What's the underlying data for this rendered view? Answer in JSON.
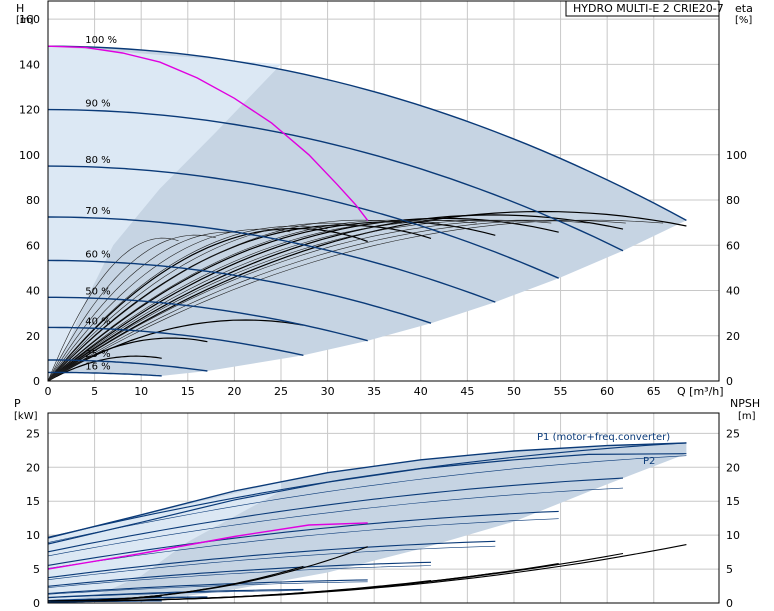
{
  "chart_data": [
    {
      "type": "line",
      "title": "HYDRO MULTI-E 2 CRIE20-7",
      "y_left_label": "H",
      "y_left_unit": "[m]",
      "y_right_label": "eta",
      "y_right_unit": "[%]",
      "x_label": "Q [m³/h]",
      "xlim": [
        0,
        72
      ],
      "ylim": [
        0,
        168
      ],
      "x_ticks": [
        0,
        5,
        10,
        15,
        20,
        25,
        30,
        35,
        40,
        45,
        50,
        55,
        60,
        65
      ],
      "y_ticks": [
        0,
        20,
        40,
        60,
        80,
        100,
        120,
        140,
        160
      ],
      "eta_ticks": [
        0,
        20,
        40,
        60,
        80,
        100
      ],
      "grid": true,
      "colors": {
        "curve": "#0a3a78",
        "region": "#c6d4e3",
        "region_light": "#dce8f4",
        "bep": "#e000e0",
        "eta": "#000000"
      },
      "speed_curves": [
        {
          "label": "100 %",
          "h0": 148,
          "qmax": 68.5
        },
        {
          "label": "90 %",
          "h0": 120,
          "qmax": 61.7
        },
        {
          "label": "80 %",
          "h0": 95,
          "qmax": 54.8
        },
        {
          "label": "70 %",
          "h0": 72.5,
          "qmax": 48
        },
        {
          "label": "60 %",
          "h0": 53.3,
          "qmax": 41.1
        },
        {
          "label": "50 %",
          "h0": 37,
          "qmax": 34.3
        },
        {
          "label": "40 %",
          "h0": 23.7,
          "qmax": 27.4
        },
        {
          "label": "25 %",
          "h0": 9.3,
          "qmax": 17.1
        },
        {
          "label": "16 %",
          "h0": 3.8,
          "qmax": 12.2
        }
      ],
      "bep_curve": [
        [
          0,
          148
        ],
        [
          4,
          147.5
        ],
        [
          8,
          145
        ],
        [
          12,
          141
        ],
        [
          16,
          134
        ],
        [
          20,
          125
        ],
        [
          24,
          114
        ],
        [
          28,
          100
        ],
        [
          31,
          87
        ],
        [
          33,
          78
        ],
        [
          34.3,
          71
        ]
      ],
      "eta_curves": [
        {
          "speed": "100 %",
          "qmax": 68.5
        },
        {
          "speed": "90 %",
          "qmax": 61.7
        },
        {
          "speed": "80 %",
          "qmax": 54.8
        },
        {
          "speed": "70 %",
          "qmax": 48
        },
        {
          "speed": "60 %",
          "qmax": 41.1
        },
        {
          "speed": "50 %",
          "qmax": 34.3
        },
        {
          "speed": "40 %",
          "qmax": 27.4
        },
        {
          "speed": "25 %",
          "qmax": 17.1
        },
        {
          "speed": "16 %",
          "qmax": 12.2
        }
      ]
    },
    {
      "type": "line",
      "y_left_label": "P",
      "y_left_unit": "[kW]",
      "y_right_label": "NPSH",
      "y_right_unit": "[m]",
      "xlim": [
        0,
        72
      ],
      "ylim": [
        0,
        28
      ],
      "y_ticks": [
        0,
        5,
        10,
        15,
        20,
        25
      ],
      "grid": true,
      "series_labels": [
        "P1 (motor+freq.converter)",
        "P2"
      ],
      "p1_curve": [
        [
          0,
          9.6
        ],
        [
          10,
          13
        ],
        [
          20,
          16.5
        ],
        [
          30,
          19.2
        ],
        [
          40,
          21.1
        ],
        [
          50,
          22.4
        ],
        [
          60,
          23.2
        ],
        [
          68.5,
          23.6
        ]
      ],
      "p2_curve": [
        [
          0,
          8.7
        ],
        [
          10,
          11.9
        ],
        [
          20,
          15.2
        ],
        [
          30,
          17.8
        ],
        [
          40,
          19.8
        ],
        [
          50,
          21.1
        ],
        [
          58,
          21.9
        ],
        [
          68.5,
          22
        ]
      ],
      "speed_power_max": [
        23.6,
        18.4,
        13.5,
        9.1,
        6,
        3.4,
        2,
        0.9,
        0.3
      ],
      "bep_power_curve": [
        [
          0,
          5
        ],
        [
          10,
          7.3
        ],
        [
          20,
          9.8
        ],
        [
          28,
          11.5
        ],
        [
          34.3,
          11.8
        ]
      ],
      "npsh_curves": [
        {
          "speed": "100 %",
          "qmax": 68.5,
          "npsh_max": 8.6
        },
        {
          "speed": "90 %",
          "qmax": 61.7,
          "npsh_max": 7.3
        },
        {
          "speed": "80 %",
          "qmax": 54.8,
          "npsh_max": 5.8
        },
        {
          "speed": "70 %",
          "qmax": 48,
          "npsh_max": 4.4
        },
        {
          "speed": "60 %",
          "qmax": 41.1,
          "npsh_max": 3.3
        },
        {
          "speed": "50 %",
          "qmax": 34.3,
          "npsh_max": 8.3
        },
        {
          "speed": "40 %",
          "qmax": 27.4,
          "npsh_max": 5.4
        },
        {
          "speed": "25 %",
          "qmax": 17.1,
          "npsh_max": 2.1
        },
        {
          "speed": "16 %",
          "qmax": 12.2,
          "npsh_max": 1
        }
      ]
    }
  ]
}
